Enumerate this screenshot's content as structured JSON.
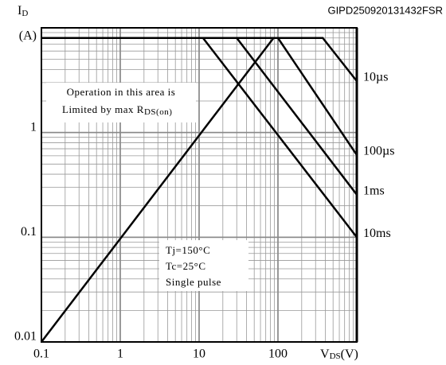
{
  "chart_data": {
    "type": "line",
    "code": "GIPD250920131432FSR",
    "y_label": {
      "main": "I",
      "sub": "D",
      "unit": "(A)"
    },
    "x_label": {
      "main": "V",
      "sub": "DS",
      "unit": "(V)"
    },
    "log_x": true,
    "log_y": true,
    "grid": true,
    "xlim": [
      0.1,
      1000
    ],
    "xticks": [
      0.1,
      1,
      10,
      100
    ],
    "ylim": [
      0.01,
      10
    ],
    "yticks": [
      0.01,
      0.1,
      1
    ],
    "series": [
      {
        "name": "10µs",
        "color": "#000000",
        "x": [
          0.1,
          370,
          1000
        ],
        "values": [
          8,
          8,
          3.1
        ]
      },
      {
        "name": "100µs",
        "color": "#000000",
        "x": [
          0.1,
          100,
          1000
        ],
        "values": [
          8,
          8,
          0.61
        ]
      },
      {
        "name": "1ms",
        "color": "#000000",
        "x": [
          0.1,
          30,
          1000
        ],
        "values": [
          8,
          8,
          0.255
        ]
      },
      {
        "name": "10ms",
        "color": "#000000",
        "x": [
          0.1,
          11.2,
          1000
        ],
        "values": [
          8,
          8,
          0.1
        ]
      },
      {
        "color": "#000000",
        "x": [
          0.1,
          88
        ],
        "values": [
          0.01,
          8
        ]
      }
    ],
    "annotation_1": {
      "lines": [
        "Operation in this area is",
        "Limited by max R"
      ],
      "sub": "DS(on)"
    },
    "annotation_2": {
      "lines": [
        "Tj=150°C",
        "Tc=25°C",
        "Single pulse"
      ]
    }
  }
}
